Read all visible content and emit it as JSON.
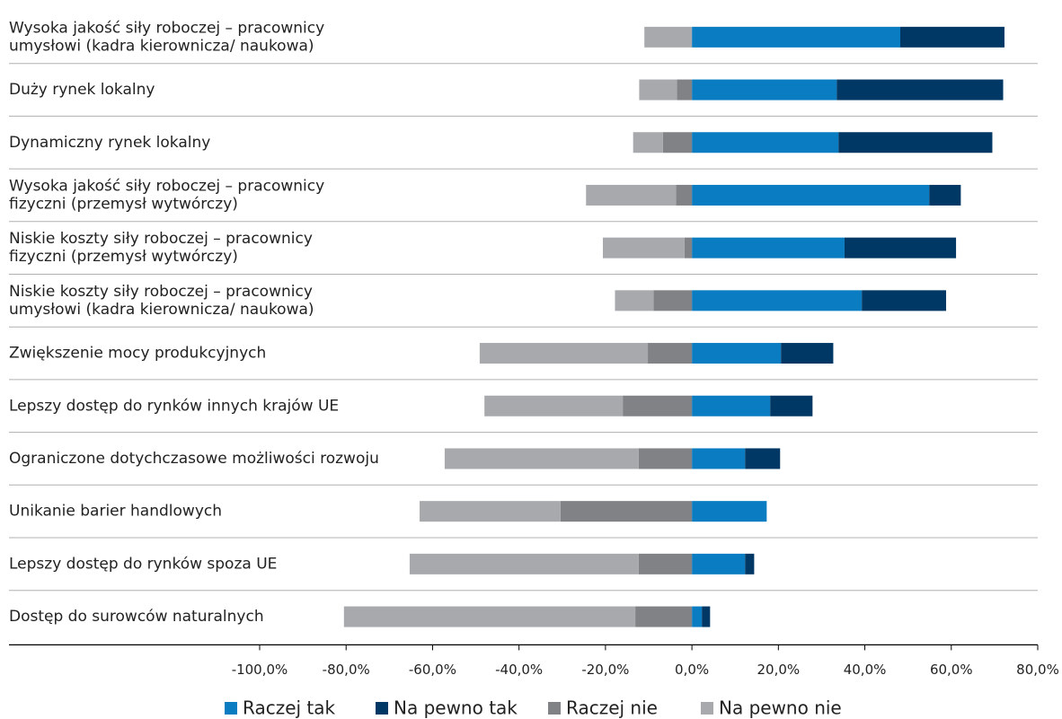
{
  "chart_data": {
    "type": "diverging-bar",
    "categories": [
      [
        "Wysoka jakość siły roboczej – pracownicy",
        "umysłowi (kadra kierownicza/ naukowa)"
      ],
      [
        "Duży rynek lokalny"
      ],
      [
        "Dynamiczny rynek lokalny"
      ],
      [
        "Wysoka jakość siły roboczej – pracownicy",
        "fizyczni (przemysł wytwórczy)"
      ],
      [
        "Niskie koszty siły roboczej  – pracownicy",
        "fizyczni (przemysł wytwórczy)"
      ],
      [
        "Niskie koszty siły roboczej – pracownicy",
        "umysłowi (kadra kierownicza/ naukowa)"
      ],
      [
        "Zwiększenie mocy produkcyjnych"
      ],
      [
        "Lepszy dostęp do rynków innych krajów UE"
      ],
      [
        "Ograniczone dotychczasowe możliwości rozwoju"
      ],
      [
        "Unikanie barier handlowych"
      ],
      [
        "Lepszy dostęp do rynków spoza UE"
      ],
      [
        "Dostęp do surowców naturalnych"
      ]
    ],
    "series": [
      {
        "name": "Raczej tak",
        "color": "#0a7cc1",
        "values": [
          48.2,
          33.5,
          33.9,
          54.9,
          35.3,
          39.3,
          20.6,
          18.1,
          12.3,
          17.3,
          12.3,
          2.3
        ]
      },
      {
        "name": "Na pewno tak",
        "color": "#003865",
        "values": [
          24.1,
          38.5,
          35.6,
          7.3,
          25.8,
          19.5,
          12.1,
          9.8,
          8.1,
          0,
          2.1,
          1.9
        ]
      },
      {
        "name": "Raczej nie",
        "color": "#808285",
        "values": [
          0,
          -3.5,
          -6.7,
          -3.7,
          -1.7,
          -8.9,
          -10.2,
          -16,
          -12.3,
          -30.4,
          -12.3,
          -13.1
        ]
      },
      {
        "name": "Na pewno nie",
        "color": "#a7a9ac",
        "values": [
          -11,
          -8.7,
          -6.9,
          -20.8,
          -18.9,
          -8.9,
          -38.9,
          -32,
          -44.9,
          -32.6,
          -53,
          -67.4
        ]
      }
    ],
    "xlim": [
      -100,
      80
    ],
    "xticks": [
      {
        "value": -100,
        "label": "-100,0%"
      },
      {
        "value": -80,
        "label": "-80,0%"
      },
      {
        "value": -60,
        "label": "-60,0%"
      },
      {
        "value": -40,
        "label": "-40,0%"
      },
      {
        "value": -20,
        "label": "-20,0%"
      },
      {
        "value": 0,
        "label": "0,0%"
      },
      {
        "value": 20,
        "label": "20,0%"
      },
      {
        "value": 40,
        "label": "40,0%"
      },
      {
        "value": 60,
        "label": "60,0%"
      },
      {
        "value": 80,
        "label": "80,0%"
      }
    ]
  }
}
